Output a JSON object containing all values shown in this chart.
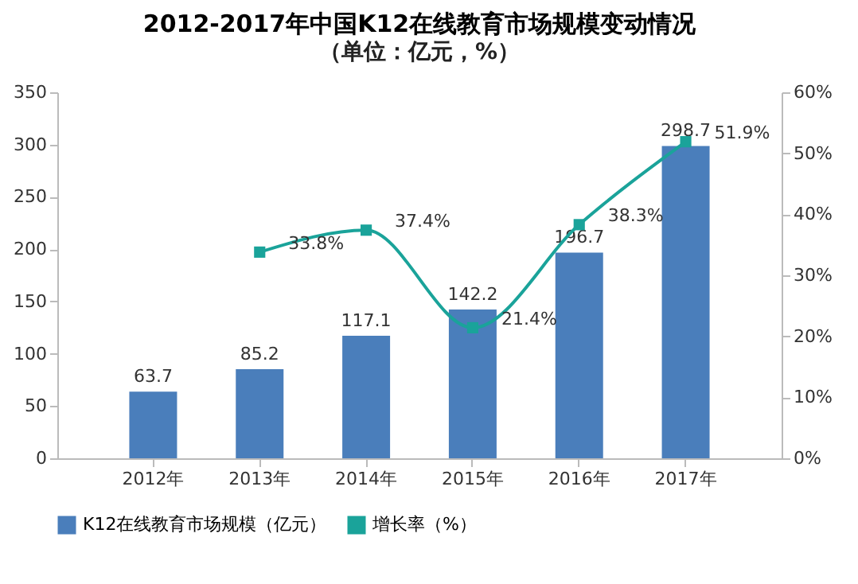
{
  "chart_data": {
    "type": "bar",
    "title": "2012-2017年中国K12在线教育市场规模变动情况",
    "subtitle": "（单位：亿元，%）",
    "categories": [
      "2012年",
      "2013年",
      "2014年",
      "2015年",
      "2016年",
      "2017年"
    ],
    "series": [
      {
        "name": "K12在线教育市场规模（亿元）",
        "color": "#4a7ebb",
        "values": [
          63.7,
          85.2,
          117.1,
          142.2,
          196.7,
          298.7
        ],
        "value_labels": [
          "63.7",
          "85.2",
          "117.1",
          "142.2",
          "196.7",
          "298.7"
        ]
      },
      {
        "name": "增长率（%）",
        "type": "line",
        "axis": "y2",
        "color": "#1aa39a",
        "marker": "square",
        "values": [
          null,
          33.8,
          37.4,
          21.4,
          38.3,
          51.9
        ],
        "value_labels": [
          null,
          "33.8%",
          "37.4%",
          "21.4%",
          "38.3%",
          "51.9%"
        ]
      }
    ],
    "ylim": [
      0,
      350
    ],
    "yticks": [
      0,
      50,
      100,
      150,
      200,
      250,
      300,
      350
    ],
    "y2lim": [
      0,
      60
    ],
    "y2ticks": [
      {
        "value": 0,
        "label": "0%"
      },
      {
        "value": 10,
        "label": "10%"
      },
      {
        "value": 20,
        "label": "20%"
      },
      {
        "value": 30,
        "label": "30%"
      },
      {
        "value": 40,
        "label": "40%"
      },
      {
        "value": 50,
        "label": "50%"
      },
      {
        "value": 60,
        "label": "60%"
      }
    ],
    "legend": "bottom"
  }
}
